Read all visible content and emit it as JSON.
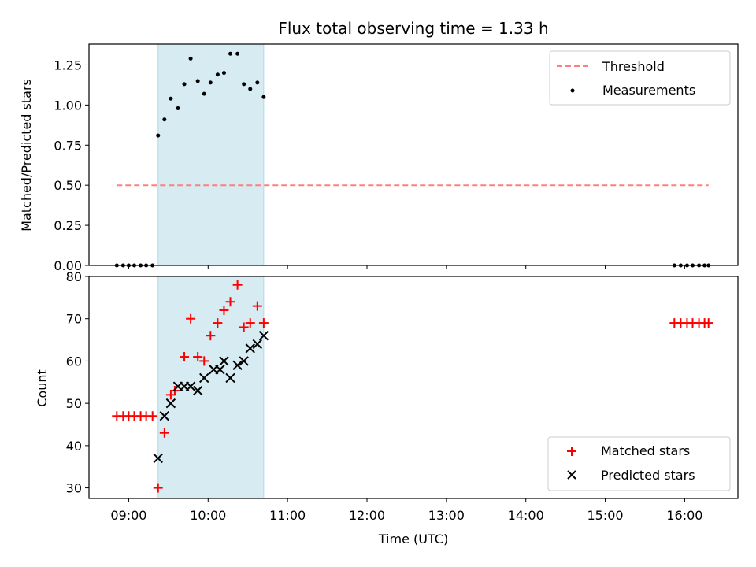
{
  "chart_data": {
    "title": "Flux total observing time = 1.33 h",
    "xlabel": "Time (UTC)",
    "x_ticks": [
      "09:00",
      "10:00",
      "11:00",
      "12:00",
      "13:00",
      "14:00",
      "15:00",
      "16:00"
    ],
    "x_range_hours": [
      8.5,
      16.67
    ],
    "highlight_span_hours": [
      9.37,
      10.7
    ],
    "colors": {
      "threshold": "#ff7f7f",
      "measurements": "#000000",
      "matched": "#ff0000",
      "predicted": "#000000",
      "highlight": "#add8e6"
    },
    "panels": [
      {
        "type": "scatter",
        "ylabel": "Matched/Predicted stars",
        "ylim": [
          0,
          1.38
        ],
        "y_ticks": [
          "0.00",
          "0.25",
          "0.50",
          "0.75",
          "1.00",
          "1.25"
        ],
        "legend_position": "top-right",
        "threshold": {
          "name": "Threshold",
          "y": 0.5,
          "x_start": 8.85,
          "x_end": 16.3
        },
        "series": [
          {
            "name": "Measurements",
            "marker": "dot",
            "points": [
              [
                8.85,
                0
              ],
              [
                8.93,
                0
              ],
              [
                9.0,
                0
              ],
              [
                9.07,
                0
              ],
              [
                9.15,
                0
              ],
              [
                9.22,
                0
              ],
              [
                9.3,
                0
              ],
              [
                9.37,
                0.81
              ],
              [
                9.45,
                0.91
              ],
              [
                9.53,
                1.04
              ],
              [
                9.62,
                0.98
              ],
              [
                9.7,
                1.13
              ],
              [
                9.78,
                1.29
              ],
              [
                9.87,
                1.15
              ],
              [
                9.95,
                1.07
              ],
              [
                10.03,
                1.14
              ],
              [
                10.12,
                1.19
              ],
              [
                10.2,
                1.2
              ],
              [
                10.28,
                1.32
              ],
              [
                10.37,
                1.32
              ],
              [
                10.45,
                1.13
              ],
              [
                10.53,
                1.1
              ],
              [
                10.62,
                1.14
              ],
              [
                10.7,
                1.05
              ],
              [
                15.87,
                0
              ],
              [
                15.95,
                0
              ],
              [
                16.03,
                0
              ],
              [
                16.1,
                0
              ],
              [
                16.18,
                0
              ],
              [
                16.25,
                0
              ],
              [
                16.3,
                0
              ]
            ]
          }
        ]
      },
      {
        "type": "scatter",
        "ylabel": "Count",
        "ylim": [
          27.5,
          80
        ],
        "y_ticks": [
          "30",
          "40",
          "50",
          "60",
          "70",
          "80"
        ],
        "legend_position": "bottom-right",
        "series": [
          {
            "name": "Matched stars",
            "marker": "plus",
            "points": [
              [
                8.85,
                47
              ],
              [
                8.93,
                47
              ],
              [
                9.0,
                47
              ],
              [
                9.07,
                47
              ],
              [
                9.15,
                47
              ],
              [
                9.22,
                47
              ],
              [
                9.3,
                47
              ],
              [
                9.37,
                30
              ],
              [
                9.45,
                43
              ],
              [
                9.53,
                52
              ],
              [
                9.58,
                53
              ],
              [
                9.7,
                61
              ],
              [
                9.78,
                70
              ],
              [
                9.87,
                61
              ],
              [
                9.95,
                60
              ],
              [
                10.03,
                66
              ],
              [
                10.12,
                69
              ],
              [
                10.2,
                72
              ],
              [
                10.28,
                74
              ],
              [
                10.37,
                78
              ],
              [
                10.45,
                68
              ],
              [
                10.53,
                69
              ],
              [
                10.62,
                73
              ],
              [
                10.7,
                69
              ],
              [
                15.87,
                69
              ],
              [
                15.95,
                69
              ],
              [
                16.03,
                69
              ],
              [
                16.1,
                69
              ],
              [
                16.18,
                69
              ],
              [
                16.25,
                69
              ],
              [
                16.3,
                69
              ]
            ]
          },
          {
            "name": "Predicted stars",
            "marker": "x",
            "points": [
              [
                9.37,
                37
              ],
              [
                9.45,
                47
              ],
              [
                9.53,
                50
              ],
              [
                9.62,
                54
              ],
              [
                9.7,
                54
              ],
              [
                9.78,
                54
              ],
              [
                9.87,
                53
              ],
              [
                9.95,
                56
              ],
              [
                10.07,
                58
              ],
              [
                10.15,
                58
              ],
              [
                10.2,
                60
              ],
              [
                10.28,
                56
              ],
              [
                10.37,
                59
              ],
              [
                10.45,
                60
              ],
              [
                10.53,
                63
              ],
              [
                10.62,
                64
              ],
              [
                10.7,
                66
              ]
            ]
          }
        ]
      }
    ]
  }
}
